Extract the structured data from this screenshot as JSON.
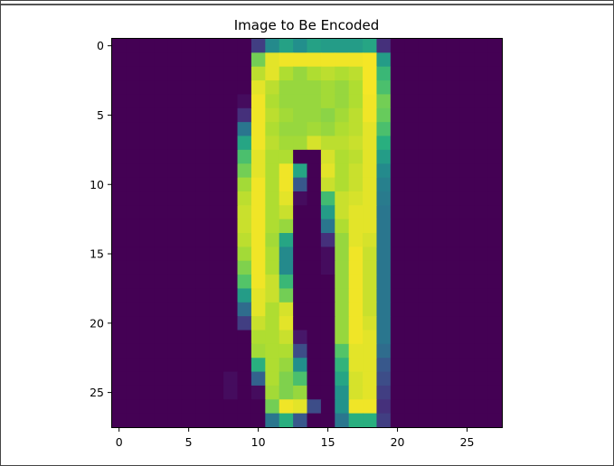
{
  "chart_data": {
    "type": "heatmap",
    "title": "Image to Be Encoded",
    "xlabel": "",
    "ylabel": "",
    "colormap": "viridis",
    "value_range": [
      0,
      255
    ],
    "shape": [
      28,
      28
    ],
    "xlim": [
      -0.5,
      27.5
    ],
    "ylim": [
      27.5,
      -0.5
    ],
    "x_ticks": [
      0,
      5,
      10,
      15,
      20,
      25
    ],
    "y_ticks": [
      0,
      5,
      10,
      15,
      20,
      25
    ],
    "x_tick_labels": [
      "0",
      "5",
      "10",
      "15",
      "20",
      "25"
    ],
    "y_tick_labels": [
      "0",
      "5",
      "10",
      "15",
      "20",
      "25"
    ],
    "grid": false,
    "values": [
      [
        0,
        0,
        0,
        0,
        0,
        0,
        0,
        0,
        0,
        0,
        50,
        120,
        145,
        125,
        145,
        140,
        140,
        140,
        150,
        40,
        0,
        0,
        0,
        0,
        0,
        0,
        0,
        0
      ],
      [
        0,
        0,
        0,
        0,
        0,
        0,
        0,
        0,
        0,
        0,
        200,
        245,
        250,
        250,
        250,
        250,
        250,
        250,
        252,
        140,
        0,
        0,
        0,
        0,
        0,
        0,
        0,
        0
      ],
      [
        0,
        0,
        0,
        0,
        0,
        0,
        0,
        0,
        0,
        0,
        230,
        245,
        225,
        215,
        225,
        230,
        225,
        230,
        252,
        170,
        0,
        0,
        0,
        0,
        0,
        0,
        0,
        0
      ],
      [
        0,
        0,
        0,
        0,
        0,
        0,
        0,
        0,
        0,
        0,
        245,
        230,
        215,
        215,
        215,
        220,
        215,
        225,
        252,
        180,
        0,
        0,
        0,
        0,
        0,
        0,
        0,
        0
      ],
      [
        0,
        0,
        0,
        0,
        0,
        0,
        0,
        0,
        0,
        10,
        250,
        225,
        215,
        215,
        215,
        220,
        215,
        225,
        250,
        200,
        0,
        0,
        0,
        0,
        0,
        0,
        0,
        0
      ],
      [
        0,
        0,
        0,
        0,
        0,
        0,
        0,
        0,
        0,
        40,
        250,
        230,
        220,
        215,
        215,
        210,
        220,
        230,
        250,
        195,
        0,
        0,
        0,
        0,
        0,
        0,
        0,
        0
      ],
      [
        0,
        0,
        0,
        0,
        0,
        0,
        0,
        0,
        0,
        100,
        250,
        225,
        215,
        215,
        220,
        215,
        225,
        230,
        245,
        180,
        0,
        0,
        0,
        0,
        0,
        0,
        0,
        0
      ],
      [
        0,
        0,
        0,
        0,
        0,
        0,
        0,
        0,
        0,
        150,
        250,
        230,
        220,
        220,
        240,
        230,
        230,
        235,
        245,
        160,
        0,
        0,
        0,
        0,
        0,
        0,
        0,
        0
      ],
      [
        0,
        0,
        0,
        0,
        0,
        0,
        0,
        0,
        0,
        180,
        245,
        225,
        225,
        0,
        0,
        240,
        225,
        230,
        245,
        140,
        0,
        0,
        0,
        0,
        0,
        0,
        0,
        0
      ],
      [
        0,
        0,
        0,
        0,
        0,
        0,
        0,
        0,
        0,
        200,
        245,
        225,
        250,
        150,
        0,
        245,
        225,
        235,
        245,
        120,
        0,
        0,
        0,
        0,
        0,
        0,
        0,
        0
      ],
      [
        0,
        0,
        0,
        0,
        0,
        0,
        0,
        0,
        0,
        220,
        250,
        225,
        250,
        70,
        0,
        235,
        225,
        235,
        245,
        110,
        0,
        0,
        0,
        0,
        0,
        0,
        0,
        0
      ],
      [
        0,
        0,
        0,
        0,
        0,
        0,
        0,
        0,
        0,
        230,
        250,
        225,
        245,
        10,
        0,
        175,
        235,
        240,
        245,
        105,
        0,
        0,
        0,
        0,
        0,
        0,
        0,
        0
      ],
      [
        0,
        0,
        0,
        0,
        0,
        0,
        0,
        0,
        0,
        235,
        250,
        225,
        235,
        0,
        0,
        140,
        235,
        245,
        245,
        100,
        0,
        0,
        0,
        0,
        0,
        0,
        0,
        0
      ],
      [
        0,
        0,
        0,
        0,
        0,
        0,
        0,
        0,
        0,
        235,
        250,
        225,
        215,
        0,
        0,
        100,
        225,
        245,
        245,
        100,
        0,
        0,
        0,
        0,
        0,
        0,
        0,
        0
      ],
      [
        0,
        0,
        0,
        0,
        0,
        0,
        0,
        0,
        0,
        230,
        250,
        220,
        150,
        0,
        0,
        40,
        215,
        245,
        240,
        100,
        0,
        0,
        0,
        0,
        0,
        0,
        0,
        0
      ],
      [
        0,
        0,
        0,
        0,
        0,
        0,
        0,
        0,
        0,
        220,
        250,
        225,
        120,
        0,
        0,
        10,
        215,
        250,
        235,
        100,
        0,
        0,
        0,
        0,
        0,
        0,
        0,
        0
      ],
      [
        0,
        0,
        0,
        0,
        0,
        0,
        0,
        0,
        0,
        205,
        250,
        225,
        120,
        0,
        0,
        10,
        215,
        250,
        235,
        100,
        0,
        0,
        0,
        0,
        0,
        0,
        0,
        0
      ],
      [
        0,
        0,
        0,
        0,
        0,
        0,
        0,
        0,
        0,
        185,
        250,
        235,
        170,
        0,
        0,
        0,
        215,
        250,
        235,
        100,
        0,
        0,
        0,
        0,
        0,
        0,
        0,
        0
      ],
      [
        0,
        0,
        0,
        0,
        0,
        0,
        0,
        0,
        0,
        140,
        245,
        235,
        200,
        0,
        0,
        0,
        215,
        250,
        235,
        100,
        0,
        0,
        0,
        0,
        0,
        0,
        0,
        0
      ],
      [
        0,
        0,
        0,
        0,
        0,
        0,
        0,
        0,
        0,
        90,
        245,
        225,
        240,
        0,
        0,
        0,
        215,
        250,
        235,
        100,
        0,
        0,
        0,
        0,
        0,
        0,
        0,
        0
      ],
      [
        0,
        0,
        0,
        0,
        0,
        0,
        0,
        0,
        0,
        50,
        235,
        225,
        245,
        0,
        0,
        0,
        215,
        250,
        240,
        100,
        0,
        0,
        0,
        0,
        0,
        0,
        0,
        0
      ],
      [
        0,
        0,
        0,
        0,
        0,
        0,
        0,
        0,
        0,
        0,
        225,
        225,
        235,
        20,
        0,
        0,
        215,
        250,
        245,
        100,
        0,
        0,
        0,
        0,
        0,
        0,
        0,
        0
      ],
      [
        0,
        0,
        0,
        0,
        0,
        0,
        0,
        0,
        0,
        0,
        220,
        225,
        225,
        60,
        0,
        0,
        185,
        245,
        245,
        90,
        0,
        0,
        0,
        0,
        0,
        0,
        0,
        0
      ],
      [
        0,
        0,
        0,
        0,
        0,
        0,
        0,
        0,
        0,
        0,
        160,
        225,
        215,
        125,
        0,
        0,
        165,
        245,
        245,
        70,
        0,
        0,
        0,
        0,
        0,
        0,
        0,
        0
      ],
      [
        0,
        0,
        0,
        0,
        0,
        0,
        0,
        0,
        10,
        0,
        80,
        225,
        205,
        180,
        0,
        0,
        150,
        240,
        245,
        60,
        0,
        0,
        0,
        0,
        0,
        0,
        0,
        0
      ],
      [
        0,
        0,
        0,
        0,
        0,
        0,
        0,
        0,
        10,
        0,
        10,
        220,
        205,
        215,
        0,
        0,
        130,
        240,
        245,
        50,
        0,
        0,
        0,
        0,
        0,
        0,
        0,
        0
      ],
      [
        0,
        0,
        0,
        0,
        0,
        0,
        0,
        0,
        0,
        0,
        0,
        200,
        250,
        245,
        60,
        0,
        130,
        250,
        250,
        40,
        0,
        0,
        0,
        0,
        0,
        0,
        0,
        0
      ],
      [
        0,
        0,
        0,
        0,
        0,
        0,
        0,
        0,
        0,
        0,
        0,
        100,
        160,
        70,
        0,
        0,
        100,
        160,
        160,
        50,
        0,
        0,
        0,
        0,
        0,
        0,
        0,
        0
      ]
    ]
  }
}
